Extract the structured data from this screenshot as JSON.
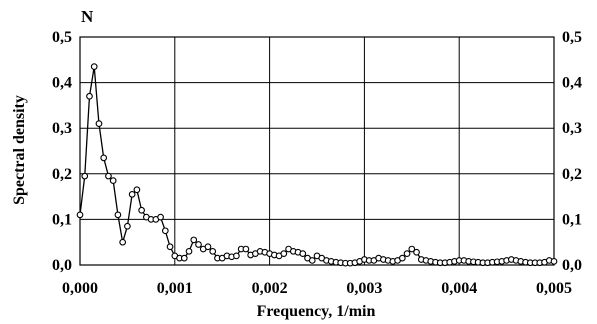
{
  "chart_data": {
    "type": "line",
    "panel_label": "N",
    "xlabel": "Frequency, 1/min",
    "ylabel": "Spectral density",
    "xlim": [
      0,
      0.005
    ],
    "ylim": [
      0,
      0.5
    ],
    "x_ticks": [
      {
        "value": 0.0,
        "label": "0,000"
      },
      {
        "value": 0.001,
        "label": "0,001"
      },
      {
        "value": 0.002,
        "label": "0,002"
      },
      {
        "value": 0.003,
        "label": "0,003"
      },
      {
        "value": 0.004,
        "label": "0,004"
      },
      {
        "value": 0.005,
        "label": "0,005"
      }
    ],
    "y_ticks": [
      {
        "value": 0.0,
        "label": "0,0"
      },
      {
        "value": 0.1,
        "label": "0,1"
      },
      {
        "value": 0.2,
        "label": "0,2"
      },
      {
        "value": 0.3,
        "label": "0,3"
      },
      {
        "value": 0.4,
        "label": "0,4"
      },
      {
        "value": 0.5,
        "label": "0,5"
      }
    ],
    "grid": true,
    "marker": "open-circle",
    "color": "#000000",
    "series": [
      {
        "x": [
          0.0,
          5e-05,
          0.0001,
          0.00015,
          0.0002,
          0.00025,
          0.0003,
          0.00035,
          0.0004,
          0.00045,
          0.0005,
          0.00055,
          0.0006,
          0.00065,
          0.0007,
          0.00075,
          0.0008,
          0.00085,
          0.0009,
          0.00095,
          0.001,
          0.00105,
          0.0011,
          0.00115,
          0.0012,
          0.00125,
          0.0013,
          0.00135,
          0.0014,
          0.00145,
          0.0015,
          0.00155,
          0.0016,
          0.00165,
          0.0017,
          0.00175,
          0.0018,
          0.00185,
          0.0019,
          0.00195,
          0.002,
          0.00205,
          0.0021,
          0.00215,
          0.0022,
          0.00225,
          0.0023,
          0.00235,
          0.0024,
          0.00245,
          0.0025,
          0.00255,
          0.0026,
          0.00265,
          0.0027,
          0.00275,
          0.0028,
          0.00285,
          0.0029,
          0.00295,
          0.003,
          0.00305,
          0.0031,
          0.00315,
          0.0032,
          0.00325,
          0.0033,
          0.00335,
          0.0034,
          0.00345,
          0.0035,
          0.00355,
          0.0036,
          0.00365,
          0.0037,
          0.00375,
          0.0038,
          0.00385,
          0.0039,
          0.00395,
          0.004,
          0.00405,
          0.0041,
          0.00415,
          0.0042,
          0.00425,
          0.0043,
          0.00435,
          0.0044,
          0.00445,
          0.0045,
          0.00455,
          0.0046,
          0.00465,
          0.0047,
          0.00475,
          0.0048,
          0.00485,
          0.0049,
          0.00495,
          0.005
        ],
        "y": [
          0.11,
          0.195,
          0.37,
          0.435,
          0.31,
          0.235,
          0.195,
          0.185,
          0.11,
          0.05,
          0.085,
          0.155,
          0.165,
          0.12,
          0.105,
          0.1,
          0.1,
          0.105,
          0.075,
          0.04,
          0.02,
          0.015,
          0.015,
          0.03,
          0.055,
          0.045,
          0.035,
          0.04,
          0.03,
          0.015,
          0.015,
          0.02,
          0.018,
          0.02,
          0.035,
          0.035,
          0.022,
          0.025,
          0.03,
          0.028,
          0.025,
          0.022,
          0.02,
          0.025,
          0.035,
          0.03,
          0.028,
          0.025,
          0.015,
          0.01,
          0.02,
          0.015,
          0.01,
          0.008,
          0.006,
          0.005,
          0.004,
          0.004,
          0.005,
          0.008,
          0.012,
          0.01,
          0.01,
          0.015,
          0.012,
          0.01,
          0.008,
          0.01,
          0.015,
          0.025,
          0.035,
          0.028,
          0.012,
          0.01,
          0.008,
          0.006,
          0.005,
          0.005,
          0.006,
          0.008,
          0.01,
          0.01,
          0.008,
          0.007,
          0.006,
          0.005,
          0.005,
          0.006,
          0.007,
          0.008,
          0.01,
          0.012,
          0.01,
          0.008,
          0.006,
          0.005,
          0.005,
          0.005,
          0.006,
          0.01,
          0.008
        ]
      }
    ]
  }
}
